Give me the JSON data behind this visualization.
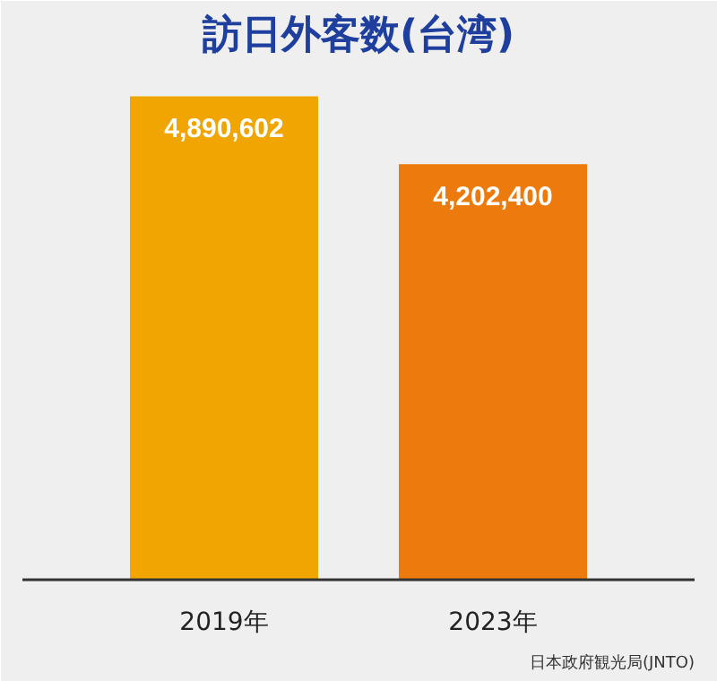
{
  "chart_data": {
    "type": "bar",
    "title": "訪日外客数(台湾)",
    "categories": [
      "2019年",
      "2023年"
    ],
    "values": [
      4890602,
      4202400
    ],
    "colors": [
      "#f0a500",
      "#ec7a0c"
    ],
    "data_labels": true,
    "value_labels": [
      "4,890,602",
      "4,202,400"
    ],
    "annotations": [
      "日本政府観光局(JNTO)"
    ]
  }
}
